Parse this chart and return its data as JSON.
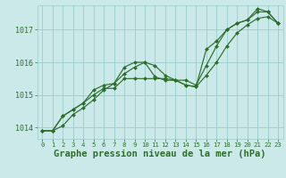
{
  "background_color": "#cce9e9",
  "grid_color": "#99cccc",
  "line_color": "#2d6e2d",
  "marker_color": "#2d6e2d",
  "xlabel": "Graphe pression niveau de la mer (hPa)",
  "xlabel_fontsize": 7.5,
  "ylim": [
    1013.65,
    1017.75
  ],
  "xlim": [
    -0.5,
    23.5
  ],
  "yticks": [
    1014,
    1015,
    1016,
    1017
  ],
  "xticks": [
    0,
    1,
    2,
    3,
    4,
    5,
    6,
    7,
    8,
    9,
    10,
    11,
    12,
    13,
    14,
    15,
    16,
    17,
    18,
    19,
    20,
    21,
    22,
    23
  ],
  "series": [
    [
      1013.9,
      1013.9,
      1014.05,
      1014.4,
      1014.6,
      1014.85,
      1015.15,
      1015.35,
      1015.65,
      1015.85,
      1016.0,
      1015.55,
      1015.45,
      1015.45,
      1015.45,
      1015.3,
      1015.9,
      1016.5,
      1017.0,
      1017.2,
      1017.3,
      1017.55,
      1017.55,
      1017.2
    ],
    [
      1013.9,
      1013.9,
      1014.35,
      1014.55,
      1014.75,
      1015.15,
      1015.3,
      1015.35,
      1015.85,
      1016.0,
      1016.0,
      1015.9,
      1015.6,
      1015.45,
      1015.3,
      1015.25,
      1016.4,
      1016.65,
      1017.0,
      1017.2,
      1017.3,
      1017.65,
      1017.55,
      1017.2
    ],
    [
      1013.9,
      1013.9,
      1014.35,
      1014.55,
      1014.75,
      1015.0,
      1015.2,
      1015.2,
      1015.5,
      1015.5,
      1015.5,
      1015.5,
      1015.5,
      1015.45,
      1015.3,
      1015.25,
      1015.6,
      1016.0,
      1016.5,
      1016.9,
      1017.15,
      1017.35,
      1017.4,
      1017.2
    ]
  ]
}
